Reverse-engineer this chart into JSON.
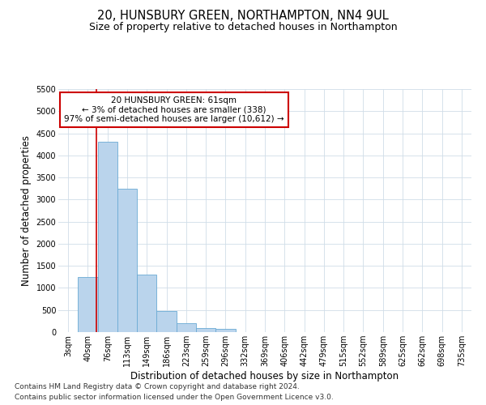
{
  "title": "20, HUNSBURY GREEN, NORTHAMPTON, NN4 9UL",
  "subtitle": "Size of property relative to detached houses in Northampton",
  "xlabel": "Distribution of detached houses by size in Northampton",
  "ylabel": "Number of detached properties",
  "footnote1": "Contains HM Land Registry data © Crown copyright and database right 2024.",
  "footnote2": "Contains public sector information licensed under the Open Government Licence v3.0.",
  "bar_labels": [
    "3sqm",
    "40sqm",
    "76sqm",
    "113sqm",
    "149sqm",
    "186sqm",
    "223sqm",
    "259sqm",
    "296sqm",
    "332sqm",
    "369sqm",
    "406sqm",
    "442sqm",
    "479sqm",
    "515sqm",
    "552sqm",
    "589sqm",
    "625sqm",
    "662sqm",
    "698sqm",
    "735sqm"
  ],
  "bar_values": [
    0,
    1250,
    4300,
    3250,
    1300,
    480,
    200,
    100,
    70,
    0,
    0,
    0,
    0,
    0,
    0,
    0,
    0,
    0,
    0,
    0,
    0
  ],
  "bar_color": "#bad4ec",
  "bar_edge_color": "#6aaad4",
  "property_label": "20 HUNSBURY GREEN: 61sqm",
  "annotation_line1": "← 3% of detached houses are smaller (338)",
  "annotation_line2": "97% of semi-detached houses are larger (10,612) →",
  "vline_x_index": 1.45,
  "vline_color": "#cc0000",
  "annotation_box_color": "#cc0000",
  "ylim": [
    0,
    5500
  ],
  "yticks": [
    0,
    500,
    1000,
    1500,
    2000,
    2500,
    3000,
    3500,
    4000,
    4500,
    5000,
    5500
  ],
  "background_color": "#ffffff",
  "grid_color": "#d0dde8",
  "title_fontsize": 10.5,
  "subtitle_fontsize": 9,
  "axis_label_fontsize": 8.5,
  "tick_fontsize": 7,
  "annotation_fontsize": 7.5,
  "footnote_fontsize": 6.5
}
